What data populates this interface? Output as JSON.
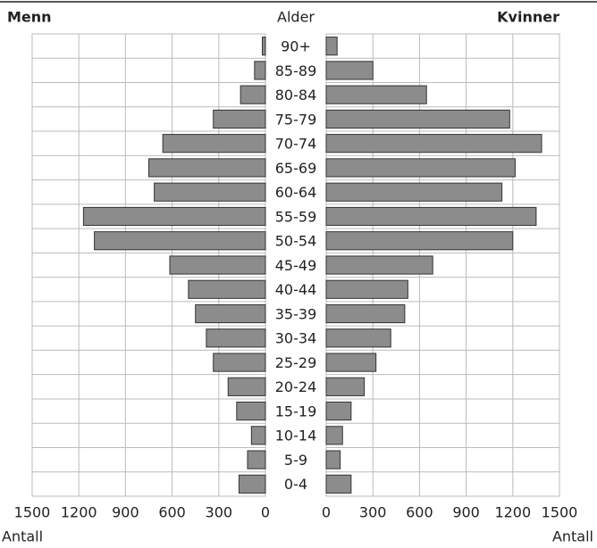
{
  "chart_data": {
    "type": "bar",
    "left_title": "Menn",
    "center_title": "Alder",
    "right_title": "Kvinner",
    "xlabel": "Antall",
    "categories": [
      "90+",
      "85-89",
      "80-84",
      "75-79",
      "70-74",
      "65-69",
      "60-64",
      "55-59",
      "50-54",
      "45-49",
      "40-44",
      "35-39",
      "30-34",
      "25-29",
      "20-24",
      "15-19",
      "10-14",
      "5-9",
      "0-4"
    ],
    "series": [
      {
        "name": "Menn",
        "color": "#8c8c8c",
        "values": [
          20,
          70,
          160,
          335,
          660,
          750,
          715,
          1170,
          1100,
          615,
          495,
          450,
          380,
          335,
          240,
          185,
          90,
          115,
          170
        ]
      },
      {
        "name": "Kvinner",
        "color": "#8c8c8c",
        "values": [
          70,
          300,
          645,
          1180,
          1385,
          1215,
          1130,
          1350,
          1200,
          685,
          525,
          505,
          415,
          320,
          245,
          160,
          105,
          90,
          160
        ]
      }
    ],
    "xlim": [
      0,
      1500
    ],
    "xticks": [
      0,
      300,
      600,
      900,
      1200,
      1500
    ],
    "grid": true
  }
}
